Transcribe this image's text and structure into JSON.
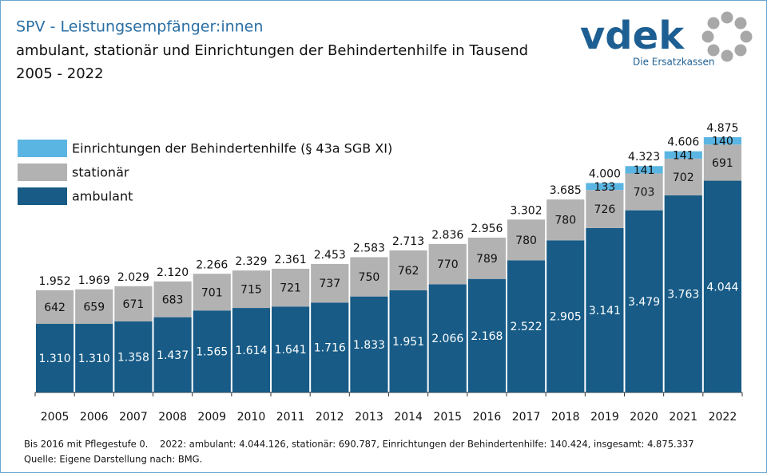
{
  "chart_data": {
    "type": "stacked-bar",
    "title": "SPV - Leistungsempfänger:innen",
    "subtitle": "ambulant, stationär und Einrichtungen der Behindertenhilfe in Tausend",
    "period": "2005 - 2022",
    "logo": {
      "name": "vdek",
      "tagline": "Die Ersatzkassen"
    },
    "categories": [
      "2005",
      "2006",
      "2007",
      "2008",
      "2009",
      "2010",
      "2011",
      "2012",
      "2013",
      "2014",
      "2015",
      "2016",
      "2017",
      "2018",
      "2019",
      "2020",
      "2021",
      "2022"
    ],
    "series": [
      {
        "name": "ambulant",
        "color": "#175b86",
        "label_color": "#ffffff",
        "values": [
          1310,
          1310,
          1358,
          1437,
          1565,
          1614,
          1641,
          1716,
          1833,
          1951,
          2066,
          2168,
          2522,
          2905,
          3141,
          3479,
          3763,
          4044
        ],
        "value_labels": [
          "1.310",
          "1.310",
          "1.358",
          "1.437",
          "1.565",
          "1.614",
          "1.641",
          "1.716",
          "1.833",
          "1.951",
          "2.066",
          "2.168",
          "2.522",
          "2.905",
          "3.141",
          "3.479",
          "3.763",
          "4.044"
        ]
      },
      {
        "name": "stationär",
        "color": "#b2b2b2",
        "label_color": "#111111",
        "values": [
          642,
          659,
          671,
          683,
          701,
          715,
          721,
          737,
          750,
          762,
          770,
          789,
          780,
          780,
          726,
          703,
          702,
          691
        ]
      },
      {
        "name": "Einrichtungen der Behindertenhilfe (§ 43a SGB XI)",
        "color": "#5bb5e2",
        "label_color": "#111111",
        "values": [
          null,
          null,
          null,
          null,
          null,
          null,
          null,
          null,
          null,
          null,
          null,
          null,
          null,
          null,
          133,
          141,
          141,
          140
        ]
      }
    ],
    "totals": {
      "values": [
        1952,
        1969,
        2029,
        2120,
        2266,
        2329,
        2361,
        2453,
        2583,
        2713,
        2836,
        2956,
        3302,
        3685,
        4000,
        4323,
        4606,
        4875
      ],
      "value_labels": [
        "1.952",
        "1.969",
        "2.029",
        "2.120",
        "2.266",
        "2.329",
        "2.361",
        "2.453",
        "2.583",
        "2.713",
        "2.836",
        "2.956",
        "3.302",
        "3.685",
        "4.000",
        "4.323",
        "4.606",
        "4.875"
      ]
    },
    "footnotes": [
      "Bis 2016 mit Pflegestufe 0.    2022: ambulant: 4.044.126, stationär: 690.787, Einrichtungen der Behindertenhilfe: 140.424, insgesamt: 4.875.337",
      "Quelle: Eigene Darstellung nach: BMG."
    ]
  }
}
